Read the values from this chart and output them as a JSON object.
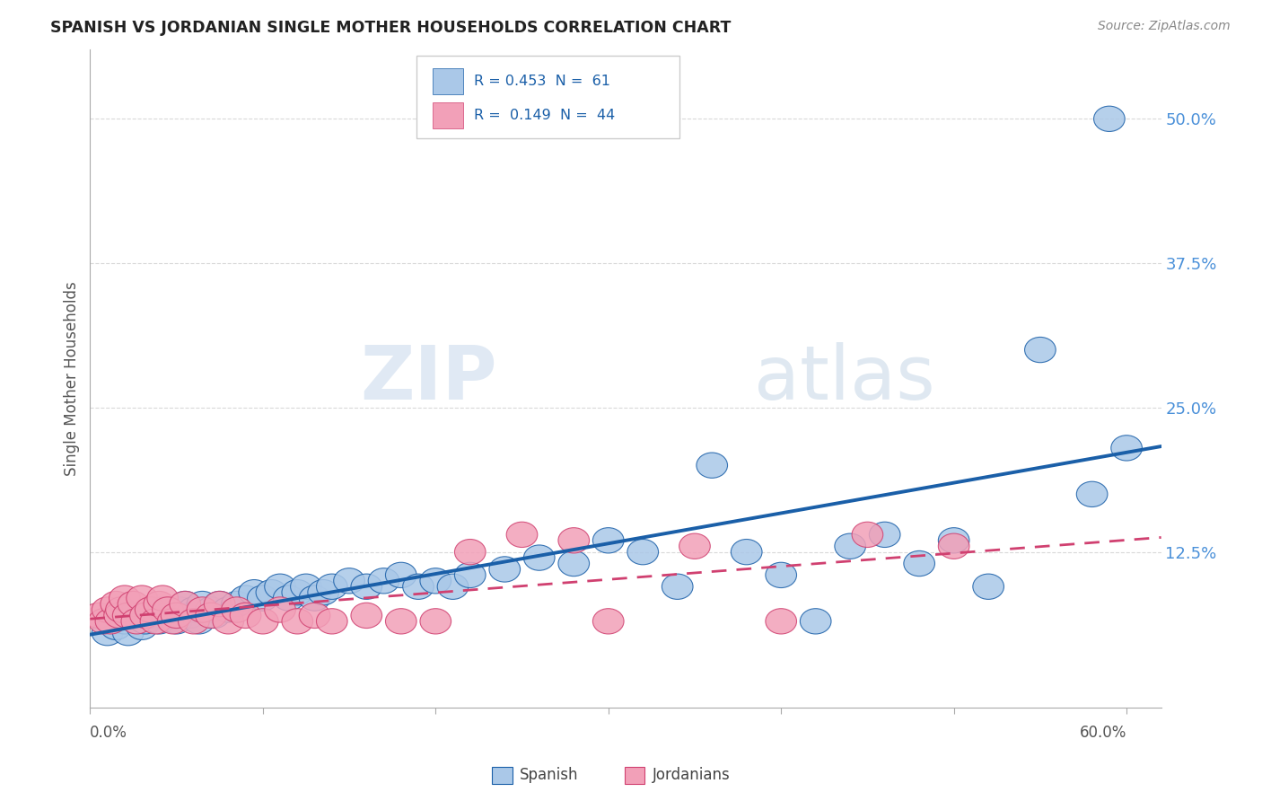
{
  "title": "SPANISH VS JORDANIAN SINGLE MOTHER HOUSEHOLDS CORRELATION CHART",
  "source": "Source: ZipAtlas.com",
  "ylabel": "Single Mother Households",
  "yticks_labels": [
    "12.5%",
    "25.0%",
    "37.5%",
    "50.0%"
  ],
  "ytick_vals": [
    0.125,
    0.25,
    0.375,
    0.5
  ],
  "xlim": [
    0.0,
    0.62
  ],
  "ylim": [
    -0.01,
    0.56
  ],
  "watermark_zip": "ZIP",
  "watermark_atlas": "atlas",
  "legend_line1": "R = 0.453  N =  61",
  "legend_line2": "R =  0.149  N =  44",
  "spanish_color": "#aac8e8",
  "jordanian_color": "#f2a0b8",
  "line_spanish_color": "#1a5fa8",
  "line_jordanian_color": "#d04070",
  "spanish_x": [
    0.01,
    0.015,
    0.02,
    0.022,
    0.025,
    0.03,
    0.032,
    0.035,
    0.04,
    0.042,
    0.045,
    0.05,
    0.052,
    0.055,
    0.058,
    0.06,
    0.063,
    0.065,
    0.07,
    0.072,
    0.075,
    0.08,
    0.085,
    0.09,
    0.095,
    0.1,
    0.105,
    0.11,
    0.115,
    0.12,
    0.125,
    0.13,
    0.135,
    0.14,
    0.15,
    0.16,
    0.17,
    0.18,
    0.19,
    0.2,
    0.21,
    0.22,
    0.24,
    0.26,
    0.28,
    0.3,
    0.32,
    0.34,
    0.36,
    0.38,
    0.4,
    0.42,
    0.44,
    0.46,
    0.48,
    0.5,
    0.52,
    0.55,
    0.58,
    0.59,
    0.6
  ],
  "spanish_y": [
    0.055,
    0.06,
    0.065,
    0.055,
    0.07,
    0.06,
    0.065,
    0.07,
    0.065,
    0.075,
    0.07,
    0.065,
    0.075,
    0.08,
    0.07,
    0.075,
    0.065,
    0.08,
    0.075,
    0.07,
    0.08,
    0.075,
    0.08,
    0.085,
    0.09,
    0.085,
    0.09,
    0.095,
    0.085,
    0.09,
    0.095,
    0.085,
    0.09,
    0.095,
    0.1,
    0.095,
    0.1,
    0.105,
    0.095,
    0.1,
    0.095,
    0.105,
    0.11,
    0.12,
    0.115,
    0.135,
    0.125,
    0.095,
    0.2,
    0.125,
    0.105,
    0.065,
    0.13,
    0.14,
    0.115,
    0.135,
    0.095,
    0.3,
    0.175,
    0.5,
    0.215
  ],
  "jordanian_x": [
    0.005,
    0.008,
    0.01,
    0.012,
    0.015,
    0.017,
    0.018,
    0.02,
    0.022,
    0.025,
    0.027,
    0.03,
    0.032,
    0.035,
    0.038,
    0.04,
    0.042,
    0.045,
    0.048,
    0.05,
    0.055,
    0.06,
    0.065,
    0.07,
    0.075,
    0.08,
    0.085,
    0.09,
    0.1,
    0.11,
    0.12,
    0.13,
    0.14,
    0.16,
    0.18,
    0.2,
    0.22,
    0.25,
    0.28,
    0.3,
    0.35,
    0.4,
    0.45,
    0.5
  ],
  "jordanian_y": [
    0.07,
    0.065,
    0.075,
    0.065,
    0.08,
    0.07,
    0.075,
    0.085,
    0.07,
    0.08,
    0.065,
    0.085,
    0.07,
    0.075,
    0.065,
    0.08,
    0.085,
    0.075,
    0.065,
    0.07,
    0.08,
    0.065,
    0.075,
    0.07,
    0.08,
    0.065,
    0.075,
    0.07,
    0.065,
    0.075,
    0.065,
    0.07,
    0.065,
    0.07,
    0.065,
    0.065,
    0.125,
    0.14,
    0.135,
    0.065,
    0.13,
    0.065,
    0.14,
    0.13
  ],
  "background_color": "#ffffff",
  "grid_color": "#d0d0d0",
  "spine_color": "#aaaaaa",
  "ytick_color": "#4a90d9",
  "title_color": "#222222",
  "source_color": "#888888",
  "ylabel_color": "#555555",
  "xtick_label_color": "#555555"
}
